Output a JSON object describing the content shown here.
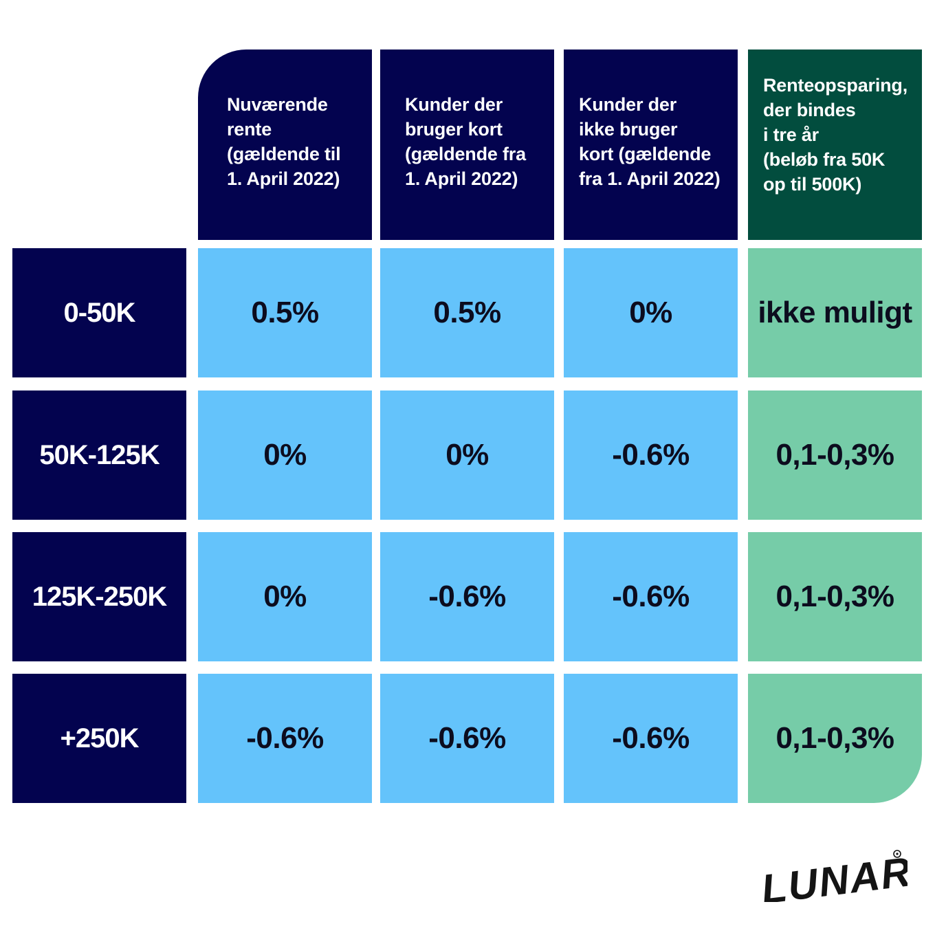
{
  "chart_data": {
    "type": "table",
    "columns": [
      "Nuværende\nrente\n(gældende til\n1. April 2022)",
      "Kunder der\nbruger kort\n(gældende fra\n1. April 2022)",
      "Kunder der\nikke bruger\nkort (gældende\nfra 1. April 2022)",
      "Renteopsparing,\nder bindes\ni tre år\n(beløb fra 50K\nop til 500K)"
    ],
    "rows": [
      {
        "label": "0-50K",
        "values": [
          "0.5%",
          "0.5%",
          "0%",
          "ikke muligt"
        ]
      },
      {
        "label": "50K-125K",
        "values": [
          "0%",
          "0%",
          "-0.6%",
          "0,1-0,3%"
        ]
      },
      {
        "label": "125K-250K",
        "values": [
          "0%",
          "-0.6%",
          "-0.6%",
          "0,1-0,3%"
        ]
      },
      {
        "label": "+250K",
        "values": [
          "-0.6%",
          "-0.6%",
          "-0.6%",
          "0,1-0,3%"
        ]
      }
    ]
  },
  "colors": {
    "header_navy": "#03034f",
    "savings_header_green": "#024d3e",
    "value_blue": "#64c3fb",
    "value_green": "#76cca8"
  },
  "logo": {
    "text": "LUNAR",
    "mark": "registered-mark"
  }
}
